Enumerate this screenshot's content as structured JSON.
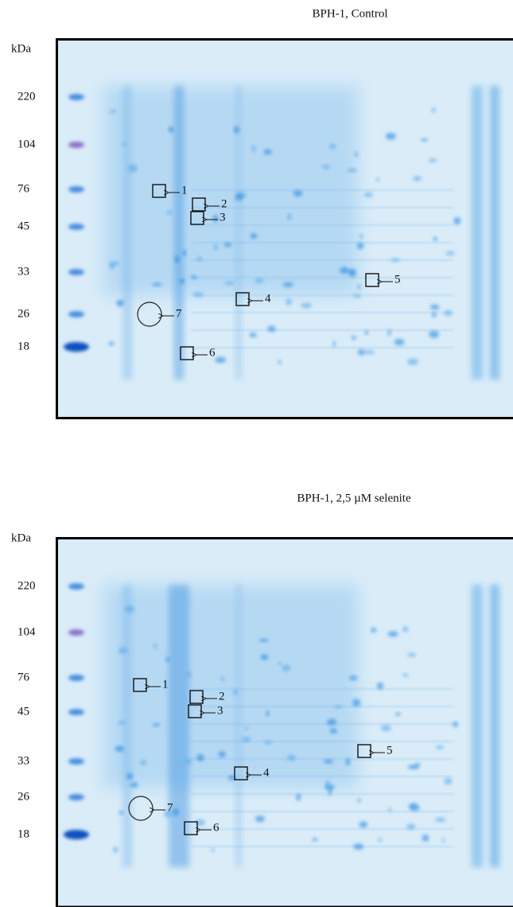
{
  "panels": [
    {
      "title": "BPH-1, Control",
      "axis_label": "kDa",
      "markers": [
        "220",
        "104",
        "76",
        "45",
        "33",
        "26",
        "18"
      ],
      "spots": [
        "1",
        "2",
        "3",
        "4",
        "5",
        "6",
        "7"
      ]
    },
    {
      "title": "BPH-1, 2,5 µM selenite",
      "axis_label": "kDa",
      "markers": [
        "220",
        "104",
        "76",
        "45",
        "33",
        "26",
        "18"
      ],
      "spots": [
        "1",
        "2",
        "3",
        "4",
        "5",
        "6",
        "7"
      ]
    }
  ]
}
